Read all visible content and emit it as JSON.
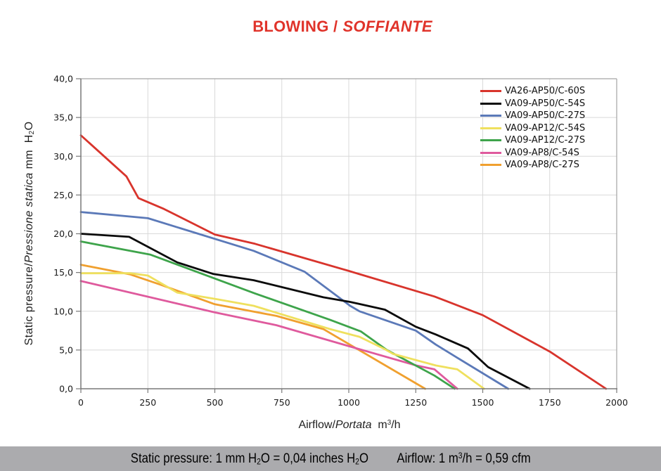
{
  "title": {
    "en": "BLOWING /",
    "it": "SOFFIANTE"
  },
  "footer": {
    "pressure_note": "Static pressure: 1 mm H₂O = 0,04 inches H₂O",
    "airflow_note": "Airflow: 1 m³/h = 0,59 cfm"
  },
  "colors": {
    "title": "#e0332a",
    "grid": "#d9d9d9",
    "border": "#a3a3a3",
    "axis": "#787878",
    "tick_text": "#1a1a1a",
    "footer_bar": "#ababae"
  },
  "chart_data": {
    "type": "line",
    "title": "BLOWING / SOFFIANTE",
    "xlabel_en": "Airflow/",
    "xlabel_it": "Portata",
    "xlabel_unit": "  m³/h",
    "ylabel_en": "Static pressure/",
    "ylabel_it": "Pressione statica",
    "ylabel_unit": " mm  H₂O",
    "xlim": [
      0,
      2000
    ],
    "ylim": [
      0,
      40
    ],
    "x_ticks": [
      0,
      250,
      500,
      750,
      1000,
      1250,
      1500,
      1750,
      2000
    ],
    "x_tick_labels": [
      "0",
      "250",
      "500",
      "750",
      "1000",
      "1250",
      "1500",
      "1750",
      "2000"
    ],
    "y_ticks": [
      0,
      5,
      10,
      15,
      20,
      25,
      30,
      35,
      40
    ],
    "y_tick_labels": [
      "0,0",
      "5,0",
      "10,0",
      "15,0",
      "20,0",
      "25,0",
      "30,0",
      "35,0",
      "40,0"
    ],
    "grid": true,
    "legend_position": "top-right",
    "series": [
      {
        "name": "VA26-AP50/C-60S",
        "color": "#d8342c",
        "points": [
          [
            0,
            32.7
          ],
          [
            170,
            27.4
          ],
          [
            215,
            24.6
          ],
          [
            310,
            23.2
          ],
          [
            500,
            19.9
          ],
          [
            650,
            18.7
          ],
          [
            1000,
            15.2
          ],
          [
            1320,
            11.9
          ],
          [
            1500,
            9.5
          ],
          [
            1750,
            4.8
          ],
          [
            1960,
            0
          ]
        ]
      },
      {
        "name": "VA09-AP50/C-54S",
        "color": "#0a0a0a",
        "points": [
          [
            0,
            20.0
          ],
          [
            180,
            19.6
          ],
          [
            360,
            16.3
          ],
          [
            495,
            14.8
          ],
          [
            645,
            14.0
          ],
          [
            905,
            11.8
          ],
          [
            1005,
            11.2
          ],
          [
            1135,
            10.2
          ],
          [
            1250,
            8.0
          ],
          [
            1325,
            7.0
          ],
          [
            1445,
            5.2
          ],
          [
            1520,
            2.8
          ],
          [
            1675,
            0
          ]
        ]
      },
      {
        "name": "VA09-AP50/C-27S",
        "color": "#5b79b8",
        "points": [
          [
            0,
            22.8
          ],
          [
            250,
            22.0
          ],
          [
            645,
            17.8
          ],
          [
            835,
            15.1
          ],
          [
            1005,
            10.7
          ],
          [
            1040,
            10.0
          ],
          [
            1250,
            7.5
          ],
          [
            1325,
            5.7
          ],
          [
            1405,
            4.0
          ],
          [
            1595,
            0
          ]
        ]
      },
      {
        "name": "VA09-AP12/C-54S",
        "color": "#efe05e",
        "points": [
          [
            0,
            14.9
          ],
          [
            185,
            14.9
          ],
          [
            250,
            14.6
          ],
          [
            360,
            12.4
          ],
          [
            500,
            11.6
          ],
          [
            645,
            10.7
          ],
          [
            930,
            7.7
          ],
          [
            1040,
            6.7
          ],
          [
            1135,
            5.1
          ],
          [
            1165,
            4.5
          ],
          [
            1325,
            3.0
          ],
          [
            1405,
            2.5
          ],
          [
            1505,
            0
          ]
        ]
      },
      {
        "name": "VA09-AP12/C-27S",
        "color": "#3ea44b",
        "points": [
          [
            0,
            19.0
          ],
          [
            260,
            17.3
          ],
          [
            650,
            12.3
          ],
          [
            930,
            8.9
          ],
          [
            1045,
            7.4
          ],
          [
            1142,
            5.0
          ],
          [
            1320,
            1.7
          ],
          [
            1395,
            0
          ]
        ]
      },
      {
        "name": "VA09-AP8/C-54S",
        "color": "#df5a9d",
        "points": [
          [
            0,
            13.9
          ],
          [
            500,
            9.85
          ],
          [
            730,
            8.2
          ],
          [
            1000,
            5.5
          ],
          [
            1252,
            3.0
          ],
          [
            1320,
            2.5
          ],
          [
            1405,
            0
          ]
        ]
      },
      {
        "name": "VA09-AP8/C-27S",
        "color": "#f0a02f",
        "points": [
          [
            0,
            16.0
          ],
          [
            185,
            14.75
          ],
          [
            300,
            13.4
          ],
          [
            500,
            10.9
          ],
          [
            730,
            9.4
          ],
          [
            905,
            7.7
          ],
          [
            1285,
            0
          ]
        ]
      }
    ]
  }
}
